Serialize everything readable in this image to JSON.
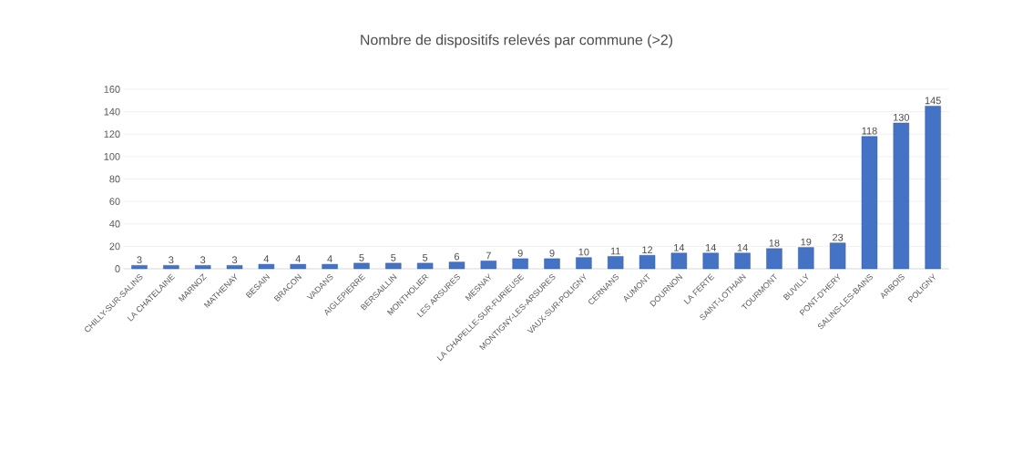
{
  "chart_data": {
    "type": "bar",
    "title": "Nombre de dispositifs relevés par commune (>2)",
    "categories": [
      "CHILLY-SUR-SALINS",
      "LA CHATELAINE",
      "MARNOZ",
      "MATHENAY",
      "BESAIN",
      "BRACON",
      "VADANS",
      "AIGLEPIERRE",
      "BERSAILLIN",
      "MONTHOLIER",
      "LES ARSURES",
      "MESNAY",
      "LA CHAPELLE-SUR-FURIEUSE",
      "MONTIGNY-LES-ARSURES",
      "VAUX-SUR-POLIGNY",
      "CERNANS",
      "AUMONT",
      "DOURNON",
      "LA FERTE",
      "SAINT-LOTHAIN",
      "TOURMONT",
      "BUVILLY",
      "PONT-D'HERY",
      "SALINS-LES-BAINS",
      "ARBOIS",
      "POLIGNY"
    ],
    "values": [
      3,
      3,
      3,
      3,
      4,
      4,
      4,
      5,
      5,
      5,
      6,
      7,
      9,
      9,
      10,
      11,
      12,
      14,
      14,
      14,
      18,
      19,
      23,
      118,
      130,
      145
    ],
    "color": "#4472c4",
    "ylim": [
      0,
      160
    ],
    "yticks": [
      0,
      20,
      40,
      60,
      80,
      100,
      120,
      140,
      160
    ],
    "grid": "y",
    "data_labels": true
  }
}
